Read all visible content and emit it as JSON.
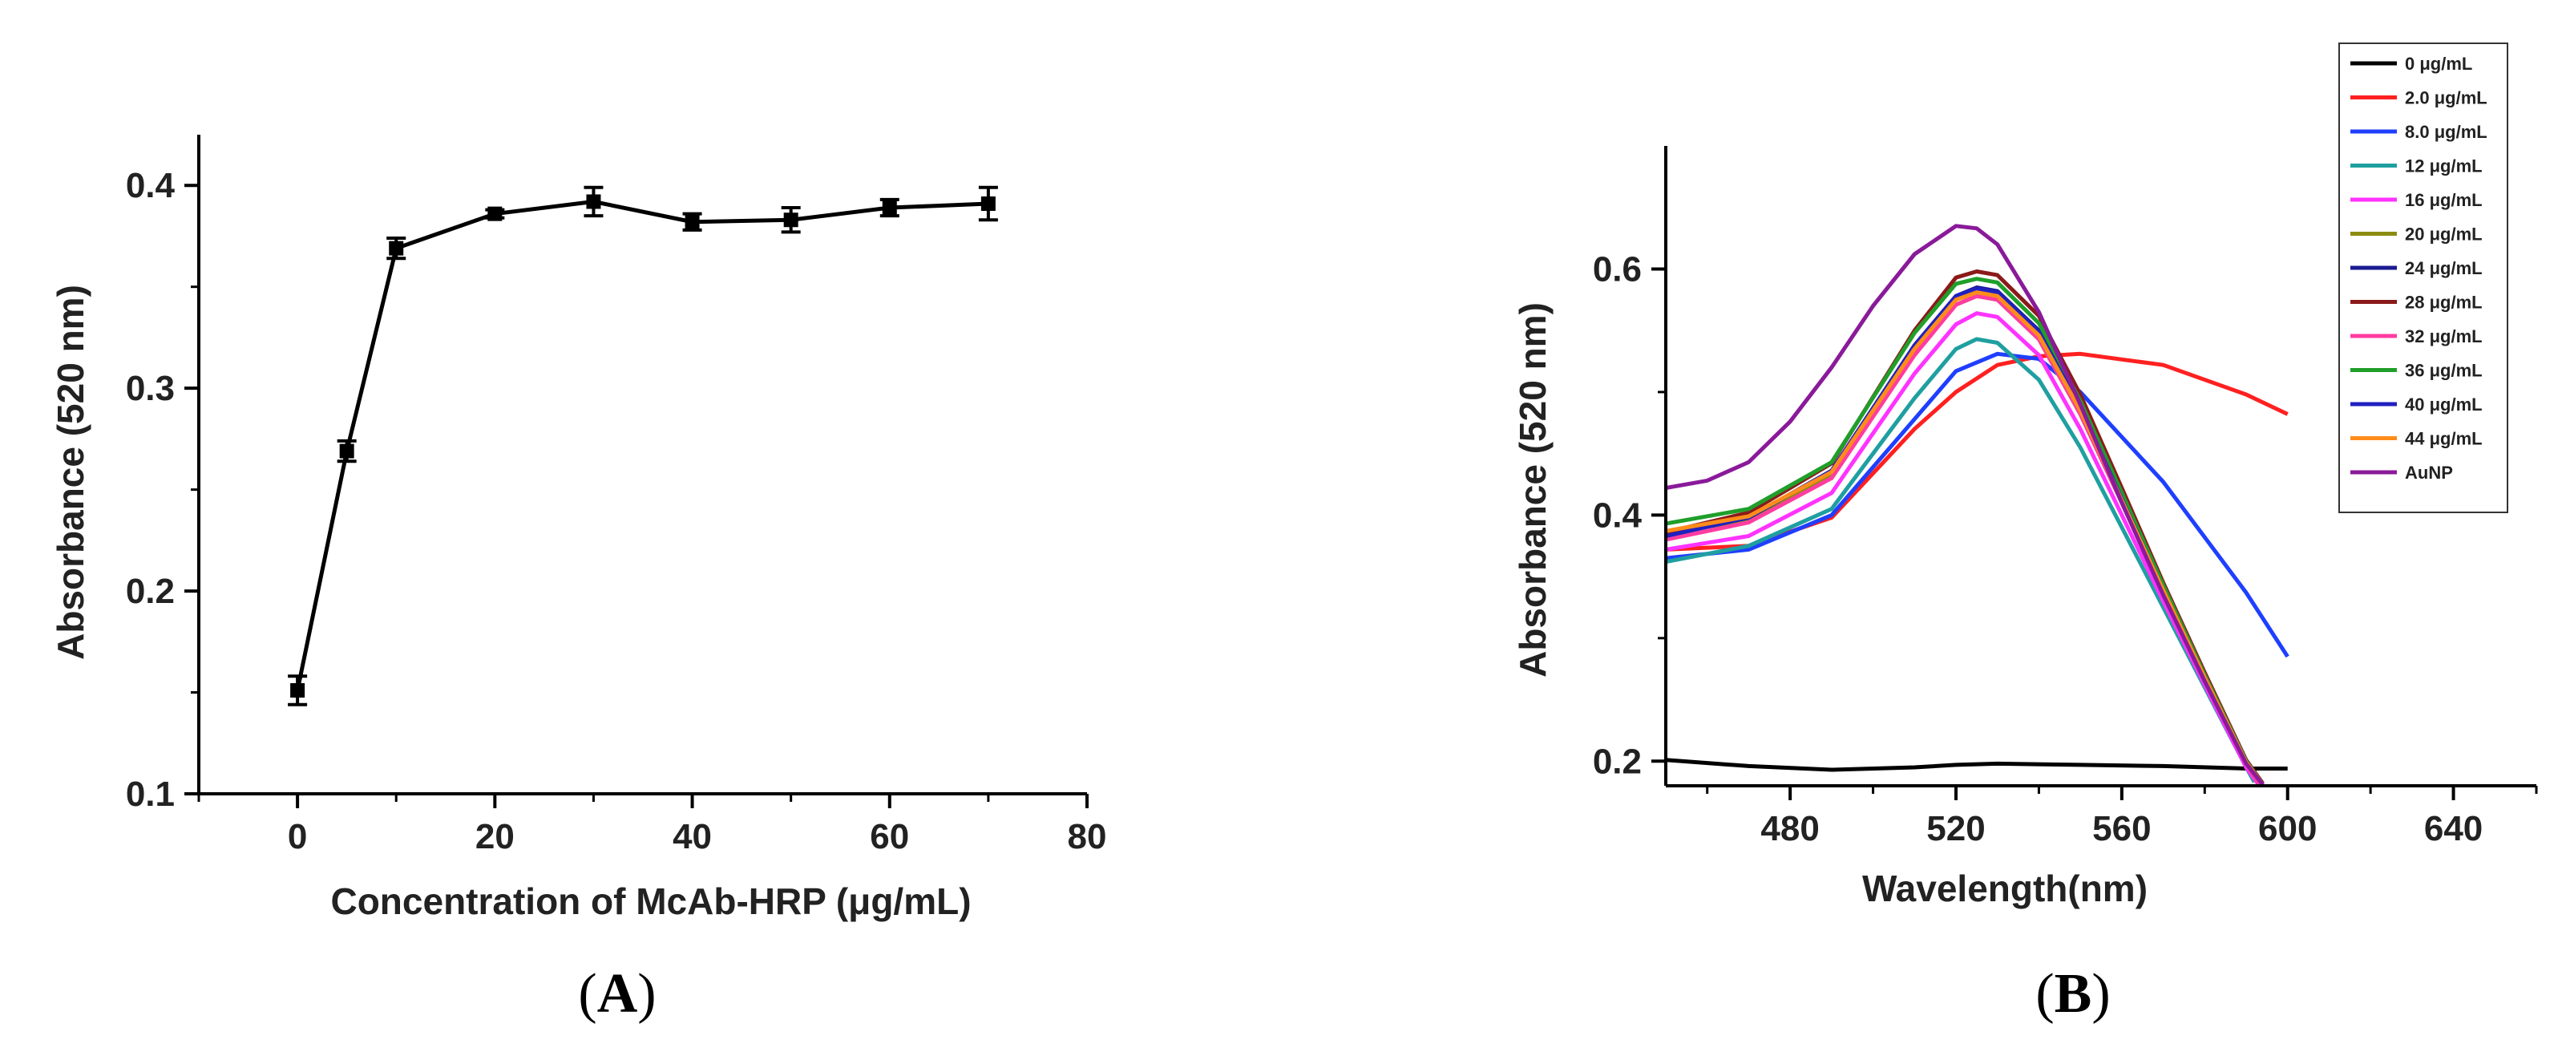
{
  "chart_data": [
    {
      "panel": "A",
      "type": "line",
      "xlabel": "Concentration of McAb-HRP (μg/mL)",
      "ylabel": "Absorbance (520 nm)",
      "xlim": [
        -10,
        80
      ],
      "ylim": [
        0.1,
        0.425
      ],
      "xticks": [
        0,
        20,
        40,
        60,
        80
      ],
      "yticks": [
        0.1,
        0.2,
        0.3,
        0.4
      ],
      "tick_labels_x": [
        "0",
        "20",
        "40",
        "60",
        "80"
      ],
      "tick_labels_y": [
        "0.1",
        "0.2",
        "0.3",
        "0.4"
      ],
      "series": [
        {
          "name": "McAb-HRP",
          "color": "#000000",
          "marker": "square",
          "x": [
            0,
            5,
            10,
            20,
            30,
            40,
            50,
            60,
            70
          ],
          "y": [
            0.151,
            0.269,
            0.369,
            0.386,
            0.392,
            0.382,
            0.383,
            0.389,
            0.391
          ],
          "error": [
            0.007,
            0.005,
            0.005,
            0.002,
            0.007,
            0.004,
            0.006,
            0.004,
            0.008
          ]
        }
      ]
    },
    {
      "panel": "B",
      "type": "line",
      "xlabel": "Wavelength(nm)",
      "ylabel": "Absorbance (520 nm)",
      "xlim": [
        450,
        660
      ],
      "ylim": [
        0.18,
        0.7
      ],
      "xticks": [
        480,
        520,
        560,
        600,
        640
      ],
      "yticks": [
        0.2,
        0.4,
        0.6
      ],
      "tick_labels_x": [
        "480",
        "520",
        "560",
        "600",
        "640"
      ],
      "tick_labels_y": [
        "0.2",
        "0.4",
        "0.6"
      ],
      "legend_position": "top-right",
      "series": [
        {
          "name": "0 μg/mL",
          "color": "#000000",
          "x": [
            450,
            470,
            490,
            510,
            520,
            530,
            550,
            570,
            590,
            600
          ],
          "y": [
            0.201,
            0.196,
            0.193,
            0.195,
            0.197,
            0.198,
            0.197,
            0.196,
            0.194,
            0.194
          ]
        },
        {
          "name": "2.0 μg/mL",
          "color": "#ff2020",
          "x": [
            450,
            470,
            490,
            510,
            520,
            530,
            540,
            550,
            570,
            590,
            600
          ],
          "y": [
            0.372,
            0.375,
            0.398,
            0.47,
            0.5,
            0.522,
            0.529,
            0.531,
            0.522,
            0.498,
            0.482
          ]
        },
        {
          "name": "8.0 μg/mL",
          "color": "#1f3fff",
          "x": [
            450,
            470,
            490,
            510,
            520,
            530,
            540,
            550,
            570,
            590,
            600
          ],
          "y": [
            0.365,
            0.372,
            0.4,
            0.478,
            0.517,
            0.531,
            0.527,
            0.5,
            0.427,
            0.337,
            0.285
          ]
        },
        {
          "name": "12 μg/mL",
          "color": "#1f9fa0",
          "x": [
            450,
            470,
            490,
            510,
            520,
            525,
            530,
            540,
            550,
            560,
            570,
            580,
            590,
            592
          ],
          "y": [
            0.362,
            0.375,
            0.405,
            0.495,
            0.535,
            0.543,
            0.54,
            0.51,
            0.455,
            0.39,
            0.325,
            0.26,
            0.195,
            0.183
          ]
        },
        {
          "name": "16 μg/mL",
          "color": "#ff33ff",
          "x": [
            450,
            470,
            490,
            510,
            520,
            525,
            530,
            540,
            550,
            560,
            570,
            580,
            590,
            593
          ],
          "y": [
            0.372,
            0.383,
            0.418,
            0.515,
            0.555,
            0.564,
            0.561,
            0.53,
            0.47,
            0.4,
            0.33,
            0.262,
            0.195,
            0.181
          ]
        },
        {
          "name": "20 μg/mL",
          "color": "#8c8c10",
          "x": [
            450,
            470,
            490,
            510,
            520,
            525,
            530,
            540,
            550,
            560,
            570,
            580,
            590,
            594
          ],
          "y": [
            0.385,
            0.396,
            0.432,
            0.532,
            0.571,
            0.578,
            0.575,
            0.543,
            0.482,
            0.41,
            0.337,
            0.267,
            0.198,
            0.181
          ]
        },
        {
          "name": "24 μg/mL",
          "color": "#1a1a90",
          "x": [
            450,
            470,
            490,
            510,
            520,
            525,
            530,
            540,
            550,
            560,
            570,
            580,
            590,
            594
          ],
          "y": [
            0.385,
            0.398,
            0.436,
            0.538,
            0.578,
            0.585,
            0.582,
            0.55,
            0.488,
            0.414,
            0.34,
            0.269,
            0.199,
            0.181
          ]
        },
        {
          "name": "28 μg/mL",
          "color": "#8b1a1a",
          "x": [
            450,
            470,
            490,
            510,
            520,
            525,
            530,
            540,
            550,
            560,
            570,
            580,
            590,
            594
          ],
          "y": [
            0.386,
            0.402,
            0.442,
            0.55,
            0.593,
            0.598,
            0.595,
            0.562,
            0.498,
            0.422,
            0.345,
            0.272,
            0.201,
            0.182
          ]
        },
        {
          "name": "32 μg/mL",
          "color": "#ff3ca0",
          "x": [
            450,
            470,
            490,
            510,
            520,
            525,
            530,
            540,
            550,
            560,
            570,
            580,
            590,
            593
          ],
          "y": [
            0.38,
            0.394,
            0.43,
            0.53,
            0.571,
            0.578,
            0.575,
            0.543,
            0.482,
            0.41,
            0.337,
            0.267,
            0.198,
            0.182
          ]
        },
        {
          "name": "36 μg/mL",
          "color": "#1f9f2a",
          "x": [
            450,
            470,
            490,
            510,
            520,
            525,
            530,
            540,
            550,
            560,
            570,
            580,
            590,
            594
          ],
          "y": [
            0.393,
            0.405,
            0.443,
            0.548,
            0.588,
            0.592,
            0.589,
            0.556,
            0.493,
            0.418,
            0.343,
            0.27,
            0.2,
            0.181
          ]
        },
        {
          "name": "40 μg/mL",
          "color": "#2020c0",
          "x": [
            450,
            470,
            490,
            510,
            520,
            525,
            530,
            540,
            550,
            560,
            570,
            580,
            590,
            594
          ],
          "y": [
            0.383,
            0.398,
            0.436,
            0.538,
            0.578,
            0.584,
            0.581,
            0.549,
            0.487,
            0.413,
            0.339,
            0.268,
            0.199,
            0.181
          ]
        },
        {
          "name": "44 μg/mL",
          "color": "#ff8c1a",
          "x": [
            450,
            470,
            490,
            510,
            520,
            525,
            530,
            540,
            550,
            560,
            570,
            580,
            590,
            594
          ],
          "y": [
            0.387,
            0.399,
            0.435,
            0.535,
            0.575,
            0.581,
            0.578,
            0.546,
            0.485,
            0.412,
            0.339,
            0.268,
            0.199,
            0.181
          ]
        },
        {
          "name": "AuNP",
          "color": "#8a1a9a",
          "x": [
            450,
            460,
            470,
            480,
            490,
            500,
            510,
            520,
            525,
            530,
            540,
            550,
            560,
            570,
            580,
            590,
            594
          ],
          "y": [
            0.422,
            0.428,
            0.443,
            0.476,
            0.52,
            0.57,
            0.612,
            0.635,
            0.633,
            0.62,
            0.565,
            0.49,
            0.41,
            0.335,
            0.265,
            0.198,
            0.181
          ]
        }
      ]
    }
  ],
  "panel_labels": {
    "a_open": "(",
    "a_letter": "A",
    "a_close": ")",
    "b_open": "(",
    "b_letter": "B",
    "b_close": ")"
  }
}
